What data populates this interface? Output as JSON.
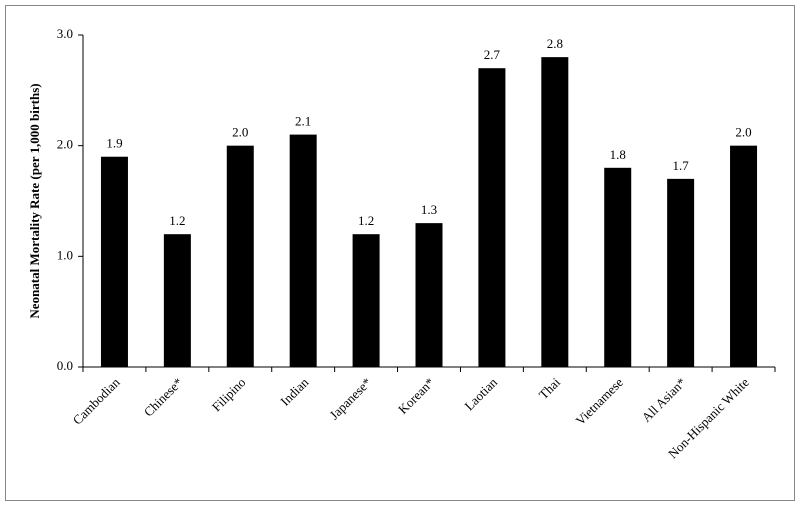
{
  "chart_data": {
    "type": "bar",
    "y_label": "Neonatal Mortality Rate (per 1,000 births)",
    "categories": [
      "Cambodian",
      "Chinese*",
      "Filipino",
      "Indian",
      "Japanese*",
      "Korean*",
      "Laotian",
      "Thai",
      "Vietnamese",
      "All Asian*",
      "Non-Hispanic White"
    ],
    "values": [
      1.9,
      1.2,
      2.0,
      2.1,
      1.2,
      1.3,
      2.7,
      2.8,
      1.8,
      1.7,
      2.0
    ],
    "value_labels": [
      "1.9",
      "1.2",
      "2.0",
      "2.1",
      "1.2",
      "1.3",
      "2.7",
      "2.8",
      "1.8",
      "1.7",
      "2.0"
    ],
    "color": "#000000",
    "ylim": [
      0,
      3
    ],
    "yticks": [
      {
        "value": 0,
        "label": "0.0"
      },
      {
        "value": 1,
        "label": "1.0"
      },
      {
        "value": 2,
        "label": "2.0"
      },
      {
        "value": 3,
        "label": "3.0"
      }
    ],
    "grid": false
  }
}
